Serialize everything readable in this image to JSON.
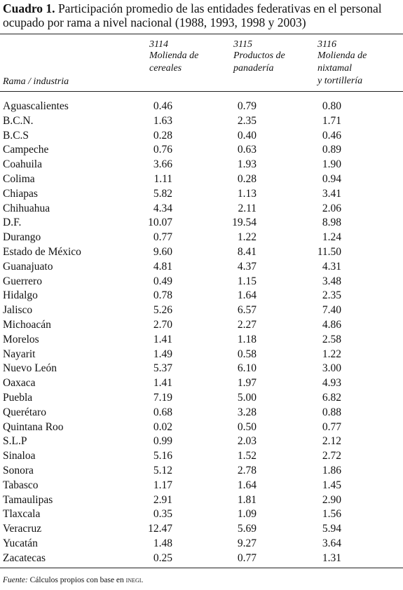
{
  "title": {
    "label": "Cuadro 1.",
    "text": "Participación promedio de las entidades federativas en el personal ocupado por rama a nivel nacional (1988, 1993, 1998 y 2003)"
  },
  "table": {
    "stub_header": "Rama / industria",
    "columns": [
      {
        "code": "3114",
        "name_lines": [
          "Molienda de",
          "cereales"
        ]
      },
      {
        "code": "3115",
        "name_lines": [
          "Productos de",
          "panadería"
        ]
      },
      {
        "code": "3116",
        "name_lines": [
          "Molienda de",
          "nixtamal",
          "y tortillería"
        ]
      }
    ],
    "rows": [
      [
        "Aguascalientes",
        "0.46",
        "0.79",
        "0.80"
      ],
      [
        "B.C.N.",
        "1.63",
        "2.35",
        "1.71"
      ],
      [
        "B.C.S",
        "0.28",
        "0.40",
        "0.46"
      ],
      [
        "Campeche",
        "0.76",
        "0.63",
        "0.89"
      ],
      [
        "Coahuila",
        "3.66",
        "1.93",
        "1.90"
      ],
      [
        "Colima",
        "1.11",
        "0.28",
        "0.94"
      ],
      [
        "Chiapas",
        "5.82",
        "1.13",
        "3.41"
      ],
      [
        "Chihuahua",
        "4.34",
        "2.11",
        "2.06"
      ],
      [
        "D.F.",
        "10.07",
        "19.54",
        "8.98"
      ],
      [
        "Durango",
        "0.77",
        "1.22",
        "1.24"
      ],
      [
        "Estado de México",
        "9.60",
        "8.41",
        "11.50"
      ],
      [
        "Guanajuato",
        "4.81",
        "4.37",
        "4.31"
      ],
      [
        "Guerrero",
        "0.49",
        "1.15",
        "3.48"
      ],
      [
        "Hidalgo",
        "0.78",
        "1.64",
        "2.35"
      ],
      [
        "Jalisco",
        "5.26",
        "6.57",
        "7.40"
      ],
      [
        "Michoacán",
        "2.70",
        "2.27",
        "4.86"
      ],
      [
        "Morelos",
        "1.41",
        "1.18",
        "2.58"
      ],
      [
        "Nayarit",
        "1.49",
        "0.58",
        "1.22"
      ],
      [
        "Nuevo León",
        "5.37",
        "6.10",
        "3.00"
      ],
      [
        "Oaxaca",
        "1.41",
        "1.97",
        "4.93"
      ],
      [
        "Puebla",
        "7.19",
        "5.00",
        "6.82"
      ],
      [
        "Querétaro",
        "0.68",
        "3.28",
        "0.88"
      ],
      [
        "Quintana Roo",
        "0.02",
        "0.50",
        "0.77"
      ],
      [
        "S.L.P",
        "0.99",
        "2.03",
        "2.12"
      ],
      [
        "Sinaloa",
        "5.16",
        "1.52",
        "2.72"
      ],
      [
        "Sonora",
        "5.12",
        "2.78",
        "1.86"
      ],
      [
        "Tabasco",
        "1.17",
        "1.64",
        "1.45"
      ],
      [
        "Tamaulipas",
        "2.91",
        "1.81",
        "2.90"
      ],
      [
        "Tlaxcala",
        "0.35",
        "1.09",
        "1.56"
      ],
      [
        "Veracruz",
        "12.47",
        "5.69",
        "5.94"
      ],
      [
        "Yucatán",
        "1.48",
        "9.27",
        "3.64"
      ],
      [
        "Zacatecas",
        "0.25",
        "0.77",
        "1.31"
      ]
    ]
  },
  "footnote": {
    "label": "Fuente:",
    "text": "Cálculos propios con base en",
    "source": "INEGI",
    "end": "."
  }
}
